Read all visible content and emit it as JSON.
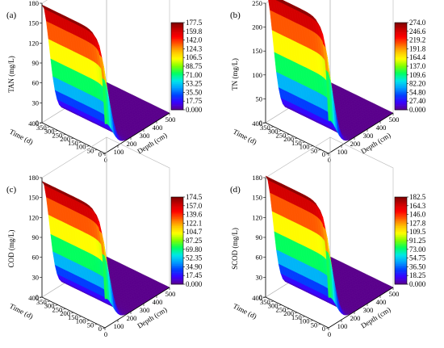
{
  "colormap": [
    "#5a008c",
    "#3a00ff",
    "#0040ff",
    "#00a0ff",
    "#00e8e8",
    "#00ff60",
    "#80ff00",
    "#ffff00",
    "#ffc000",
    "#ff6000",
    "#ff0000",
    "#c80000",
    "#7a0000"
  ],
  "chart_data": [
    {
      "type": "surface3d",
      "panel_label": "(a)",
      "zlabel": "TAN (mg/L)",
      "xlabel": "Time (d)",
      "ylabel": "Depth (cm)",
      "x_ticks": [
        "0",
        "50",
        "100",
        "150",
        "200",
        "250",
        "300",
        "350",
        "400"
      ],
      "y_ticks": [
        "0",
        "100",
        "200",
        "300",
        "400",
        "500"
      ],
      "z_ticks": [
        "0",
        "30",
        "60",
        "90",
        "120",
        "150",
        "180"
      ],
      "xlim": [
        0,
        400
      ],
      "ylim": [
        0,
        500
      ],
      "zlim": [
        0,
        180
      ],
      "surface_max": 177.5,
      "colorbar_ticks": [
        "177.5",
        "159.8",
        "142.0",
        "124.3",
        "106.5",
        "88.75",
        "71.00",
        "53.25",
        "35.50",
        "17.75",
        "0.000"
      ],
      "colorbar_range": [
        0,
        177.5
      ]
    },
    {
      "type": "surface3d",
      "panel_label": "(b)",
      "zlabel": "TN (mg/L)",
      "xlabel": "Time (d)",
      "ylabel": "Depth (cm)",
      "x_ticks": [
        "0",
        "50",
        "100",
        "150",
        "200",
        "250",
        "300",
        "350",
        "400"
      ],
      "y_ticks": [
        "0",
        "100",
        "200",
        "300",
        "400",
        "500"
      ],
      "z_ticks": [
        "0",
        "50",
        "100",
        "150",
        "200",
        "250"
      ],
      "xlim": [
        0,
        400
      ],
      "ylim": [
        0,
        500
      ],
      "zlim": [
        0,
        250
      ],
      "surface_max": 274.0,
      "colorbar_ticks": [
        "274.0",
        "246.6",
        "219.2",
        "191.8",
        "164.4",
        "137.0",
        "109.6",
        "82.20",
        "54.80",
        "27.40",
        "0.000"
      ],
      "colorbar_range": [
        0,
        274.0
      ]
    },
    {
      "type": "surface3d",
      "panel_label": "(c)",
      "zlabel": "COD (mg/L)",
      "xlabel": "Time (d)",
      "ylabel": "Depth (cm)",
      "x_ticks": [
        "0",
        "50",
        "100",
        "150",
        "200",
        "250",
        "300",
        "350",
        "400"
      ],
      "y_ticks": [
        "0",
        "100",
        "200",
        "300",
        "400",
        "500"
      ],
      "z_ticks": [
        "0",
        "30",
        "60",
        "90",
        "120",
        "150",
        "180"
      ],
      "xlim": [
        0,
        400
      ],
      "ylim": [
        0,
        500
      ],
      "zlim": [
        0,
        180
      ],
      "surface_max": 174.5,
      "colorbar_ticks": [
        "174.5",
        "157.0",
        "139.6",
        "122.1",
        "104.7",
        "87.25",
        "69.80",
        "52.35",
        "34.90",
        "17.45",
        "0.000"
      ],
      "colorbar_range": [
        0,
        174.5
      ]
    },
    {
      "type": "surface3d",
      "panel_label": "(d)",
      "zlabel": "SCOD (mg/L)",
      "xlabel": "Time (d)",
      "ylabel": "Depth (cm)",
      "x_ticks": [
        "0",
        "50",
        "100",
        "150",
        "200",
        "250",
        "300",
        "350",
        "400"
      ],
      "y_ticks": [
        "0",
        "100",
        "200",
        "300",
        "400",
        "500"
      ],
      "z_ticks": [
        "0",
        "30",
        "60",
        "90",
        "120",
        "150",
        "180"
      ],
      "xlim": [
        0,
        400
      ],
      "ylim": [
        0,
        500
      ],
      "zlim": [
        0,
        180
      ],
      "surface_max": 182.5,
      "colorbar_ticks": [
        "182.5",
        "164.3",
        "146.0",
        "127.8",
        "109.5",
        "91.25",
        "73.00",
        "54.75",
        "36.50",
        "18.25",
        "0.000"
      ],
      "colorbar_range": [
        0,
        182.5
      ]
    }
  ]
}
